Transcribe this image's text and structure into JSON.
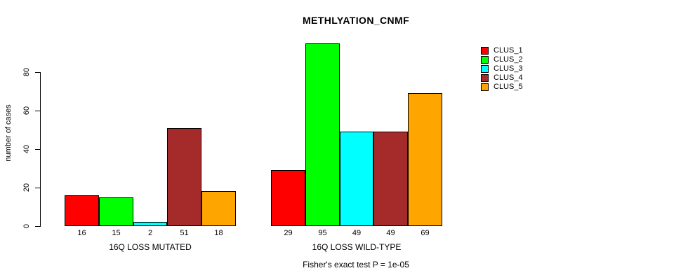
{
  "header": {
    "title": "METHLYATION_CNMF"
  },
  "axes": {
    "ylabel": "number of cases",
    "yticks": [
      "0",
      "20",
      "40",
      "60",
      "80"
    ]
  },
  "annotation": {
    "fisher": "Fisher's exact test P = 1e-05"
  },
  "legend": {
    "items": [
      {
        "label": "CLUS_1",
        "color": "#ff0000"
      },
      {
        "label": "CLUS_2",
        "color": "#00ff00"
      },
      {
        "label": "CLUS_3",
        "color": "#00ffff"
      },
      {
        "label": "CLUS_4",
        "color": "#a52a2a"
      },
      {
        "label": "CLUS_5",
        "color": "#ffa500"
      }
    ]
  },
  "chart_data": {
    "type": "bar",
    "title": "METHLYATION_CNMF",
    "ylabel": "number of cases",
    "xlabel": "",
    "ylim": [
      0,
      95
    ],
    "yticks": [
      0,
      20,
      40,
      60,
      80
    ],
    "grid": false,
    "legend_position": "top-right-outside",
    "categories": [
      "16Q LOSS MUTATED",
      "16Q LOSS WILD-TYPE"
    ],
    "series": [
      {
        "name": "CLUS_1",
        "color": "#ff0000",
        "values": [
          16,
          29
        ]
      },
      {
        "name": "CLUS_2",
        "color": "#00ff00",
        "values": [
          15,
          95
        ]
      },
      {
        "name": "CLUS_3",
        "color": "#00ffff",
        "values": [
          2,
          49
        ]
      },
      {
        "name": "CLUS_4",
        "color": "#a52a2a",
        "values": [
          51,
          49
        ]
      },
      {
        "name": "CLUS_5",
        "color": "#ffa500",
        "values": [
          18,
          69
        ]
      }
    ],
    "bar_value_labels": [
      [
        16,
        15,
        2,
        51,
        18
      ],
      [
        29,
        95,
        49,
        49,
        69
      ]
    ],
    "annotation": "Fisher's exact test P = 1e-05"
  }
}
